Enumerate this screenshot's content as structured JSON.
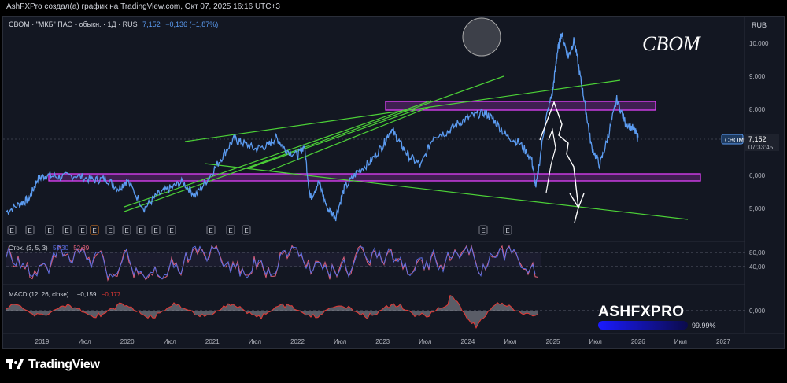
{
  "header": {
    "caption": "AshFXPro создал(а) график на TradingView.com, Окт 07, 2025 16:16 UTC+3",
    "legend_name": "СВОМ · \"МКБ\" ПАО - обыкн. · 1Д · RUS",
    "legend_last": "7,152",
    "legend_change": "−0,136 (−1,87%)"
  },
  "watermark": {
    "ticker": "CBOM"
  },
  "currency": "RUB",
  "price_tag": {
    "symbol": "CBOM",
    "price": "7,152",
    "countdown": "07:33:45"
  },
  "axes": {
    "price_ticks": [
      {
        "label": "10,000",
        "value": 10000
      },
      {
        "label": "9,000",
        "value": 9000
      },
      {
        "label": "8,000",
        "value": 8000
      },
      {
        "label": "6,000",
        "value": 6000
      },
      {
        "label": "5,000",
        "value": 5000
      }
    ],
    "stoch_ticks": [
      {
        "label": "80,00",
        "value": 80
      },
      {
        "label": "40,00",
        "value": 40
      }
    ],
    "macd_ticks": [
      {
        "label": "0,000",
        "value": 0
      }
    ],
    "time_ticks": [
      {
        "label": "2019",
        "t": 2019.0
      },
      {
        "label": "Июл",
        "t": 2019.5
      },
      {
        "label": "2020",
        "t": 2020.0
      },
      {
        "label": "Июл",
        "t": 2020.5
      },
      {
        "label": "2021",
        "t": 2021.0
      },
      {
        "label": "Июл",
        "t": 2021.5
      },
      {
        "label": "2022",
        "t": 2022.0
      },
      {
        "label": "Июл",
        "t": 2022.5
      },
      {
        "label": "2023",
        "t": 2023.0
      },
      {
        "label": "Июл",
        "t": 2023.5
      },
      {
        "label": "2024",
        "t": 2024.0
      },
      {
        "label": "Июл",
        "t": 2024.5
      },
      {
        "label": "2025",
        "t": 2025.0
      },
      {
        "label": "Июл",
        "t": 2025.5
      },
      {
        "label": "2026",
        "t": 2026.0
      },
      {
        "label": "Июл",
        "t": 2026.5
      },
      {
        "label": "2027",
        "t": 2027.0
      }
    ]
  },
  "indicators": {
    "stoch": {
      "label": "Стох. (3, 5, 3)",
      "k": "55,30",
      "d": "52,39"
    },
    "macd": {
      "label": "MACD (12, 26, close)",
      "macd": "−0,159",
      "signal": "−0,177"
    }
  },
  "earnings_marker": "E",
  "brand": {
    "name": "ASHFXPRO",
    "percent": "99.99%"
  },
  "footer": {
    "logo_text": "TradingView"
  },
  "colors": {
    "price_line": "#5b9bf0",
    "zone": "#e040fb",
    "trendline": "#4cd137",
    "projection": "#ffffff",
    "stoch_k": "#5b6ee1",
    "stoch_d": "#e0607a",
    "macd_line": "#e53935"
  },
  "chart_data": {
    "type": "line",
    "title": "СВОМ · \"МКБ\" ПАО - обыкн. · 1Д · RUS",
    "ylabel": "RUB",
    "x_unit": "year",
    "ylim": [
      4600,
      10800
    ],
    "series": [
      {
        "name": "СВОМ",
        "points": [
          [
            2018.58,
            4.9
          ],
          [
            2018.75,
            5.15
          ],
          [
            2018.85,
            5.3
          ],
          [
            2018.95,
            5.9
          ],
          [
            2019.05,
            6.0
          ],
          [
            2019.2,
            5.95
          ],
          [
            2019.4,
            6.0
          ],
          [
            2019.6,
            5.85
          ],
          [
            2019.75,
            5.9
          ],
          [
            2019.9,
            5.6
          ],
          [
            2020.0,
            5.85
          ],
          [
            2020.2,
            5.0
          ],
          [
            2020.35,
            5.4
          ],
          [
            2020.5,
            5.6
          ],
          [
            2020.65,
            5.8
          ],
          [
            2020.8,
            5.4
          ],
          [
            2020.95,
            5.9
          ],
          [
            2021.1,
            6.5
          ],
          [
            2021.25,
            7.1
          ],
          [
            2021.35,
            7.0
          ],
          [
            2021.5,
            6.8
          ],
          [
            2021.65,
            6.9
          ],
          [
            2021.75,
            7.15
          ],
          [
            2021.85,
            6.8
          ],
          [
            2022.0,
            6.6
          ],
          [
            2022.08,
            6.9
          ],
          [
            2022.15,
            5.3
          ],
          [
            2022.25,
            5.8
          ],
          [
            2022.35,
            5.0
          ],
          [
            2022.45,
            4.75
          ],
          [
            2022.55,
            5.6
          ],
          [
            2022.7,
            6.1
          ],
          [
            2022.85,
            6.4
          ],
          [
            2023.0,
            6.9
          ],
          [
            2023.1,
            7.4
          ],
          [
            2023.2,
            7.0
          ],
          [
            2023.3,
            6.6
          ],
          [
            2023.45,
            6.3
          ],
          [
            2023.6,
            7.2
          ],
          [
            2023.75,
            7.3
          ],
          [
            2023.9,
            7.6
          ],
          [
            2024.05,
            7.8
          ],
          [
            2024.2,
            7.9
          ],
          [
            2024.3,
            7.7
          ],
          [
            2024.45,
            7.2
          ],
          [
            2024.6,
            7.0
          ],
          [
            2024.75,
            6.5
          ],
          [
            2024.8,
            5.6
          ],
          [
            2024.9,
            7.5
          ],
          [
            2025.0,
            8.6
          ],
          [
            2025.05,
            9.7
          ],
          [
            2025.1,
            10.3
          ],
          [
            2025.18,
            9.6
          ],
          [
            2025.25,
            10.1
          ],
          [
            2025.32,
            9.0
          ],
          [
            2025.38,
            8.1
          ],
          [
            2025.45,
            6.9
          ],
          [
            2025.55,
            6.3
          ],
          [
            2025.65,
            7.2
          ],
          [
            2025.75,
            8.3
          ],
          [
            2025.85,
            7.6
          ],
          [
            2025.95,
            7.4
          ],
          [
            2026.0,
            7.15
          ]
        ]
      }
    ]
  }
}
